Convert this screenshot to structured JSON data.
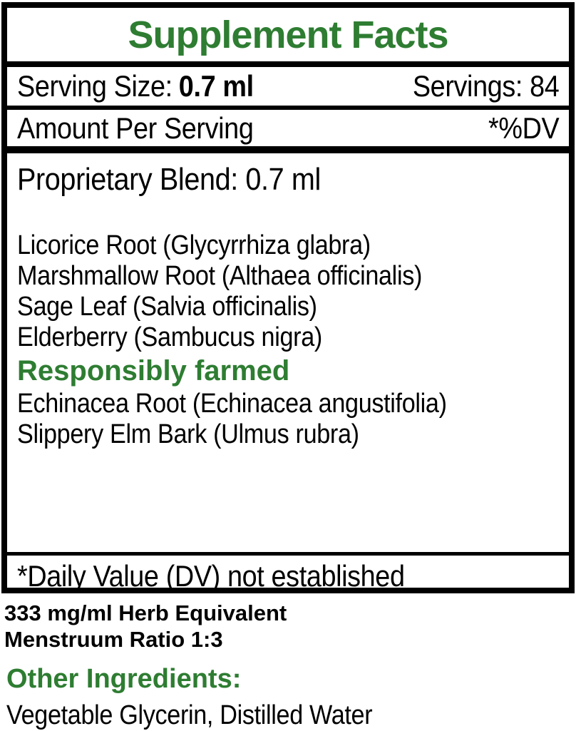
{
  "colors": {
    "accent_green": "#2e7d32",
    "text_black": "#000000",
    "border_black": "#000000",
    "background_white": "#ffffff"
  },
  "label": {
    "title": "Supplement Facts",
    "serving_row": {
      "serving_size_label": "Serving Size:",
      "serving_size_value": "0.7 ml",
      "servings_text": "Servings: 84"
    },
    "amount_row": {
      "left": "Amount Per Serving",
      "right": "*%DV"
    },
    "blend": {
      "heading": "Proprietary Blend: 0.7 ml",
      "herbs_top": [
        "Licorice Root (Glycyrrhiza glabra)",
        "Marshmallow Root (Althaea officinalis)",
        "Sage Leaf (Salvia officinalis)",
        "Elderberry (Sambucus nigra)"
      ],
      "callout": "Responsibly farmed",
      "herbs_bottom": [
        "Echinacea Root (Echinacea angustifolia)",
        "Slippery Elm Bark (Ulmus rubra)"
      ]
    },
    "footnote": "*Daily Value (DV) not established",
    "equivalents": {
      "line1": "333 mg/ml Herb Equivalent",
      "line2": "Menstruum Ratio 1:3"
    },
    "other_ingredients": {
      "heading": "Other Ingredients:",
      "items": "Vegetable Glycerin, Distilled Water"
    }
  }
}
